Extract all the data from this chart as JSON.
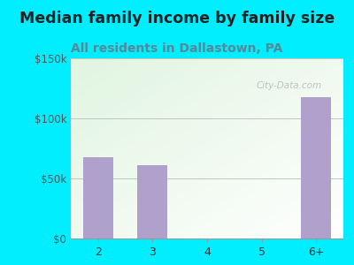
{
  "title": "Median family income by family size",
  "subtitle": "All residents in Dallastown, PA",
  "categories": [
    "2",
    "3",
    "4",
    "5",
    "6+"
  ],
  "values": [
    68000,
    61000,
    0,
    0,
    118000
  ],
  "bar_color": "#b0a0cc",
  "title_color": "#222222",
  "subtitle_color": "#558899",
  "background_outer": "#00eeff",
  "ylim": [
    0,
    150000
  ],
  "yticks": [
    0,
    50000,
    100000,
    150000
  ],
  "ytick_labels": [
    "$0",
    "$50k",
    "$100k",
    "$150k"
  ],
  "watermark": "City-Data.com",
  "title_fontsize": 12.5,
  "subtitle_fontsize": 10
}
